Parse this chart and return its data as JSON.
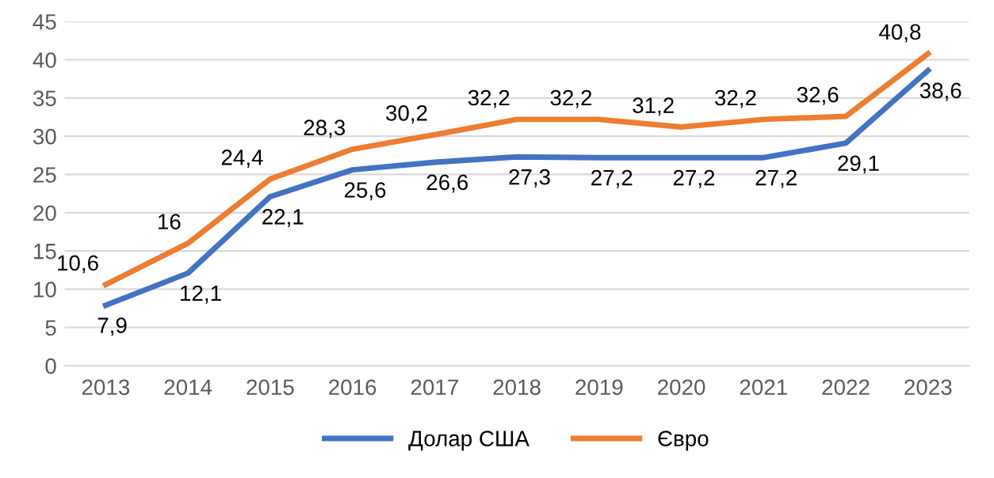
{
  "chart_data": {
    "type": "line",
    "categories": [
      "2013",
      "2014",
      "2015",
      "2016",
      "2017",
      "2018",
      "2019",
      "2020",
      "2021",
      "2022",
      "2023"
    ],
    "series": [
      {
        "name": "Долар США",
        "color": "#4472c4",
        "values": [
          7.9,
          12.1,
          22.1,
          25.6,
          26.6,
          27.3,
          27.2,
          27.2,
          27.2,
          29.1,
          38.6
        ],
        "value_labels": [
          "7,9",
          "12,1",
          "22,1",
          "25,6",
          "26,6",
          "27,3",
          "27,2",
          "27,2",
          "27,2",
          "29,1",
          "38,6"
        ]
      },
      {
        "name": "Євро",
        "color": "#ed7d31",
        "values": [
          10.6,
          16,
          24.4,
          28.3,
          30.2,
          32.2,
          32.2,
          31.2,
          32.2,
          32.6,
          40.8
        ],
        "value_labels": [
          "10,6",
          "16",
          "24,4",
          "28,3",
          "30,2",
          "32,2",
          "32,2",
          "31,2",
          "32,2",
          "32,6",
          "40,8"
        ]
      }
    ],
    "ylim": [
      0,
      45
    ],
    "yticks": [
      0,
      5,
      10,
      15,
      20,
      25,
      30,
      35,
      40,
      45
    ],
    "grid": "y",
    "legend": "bottom",
    "marker": "none",
    "line_style": "solid"
  }
}
